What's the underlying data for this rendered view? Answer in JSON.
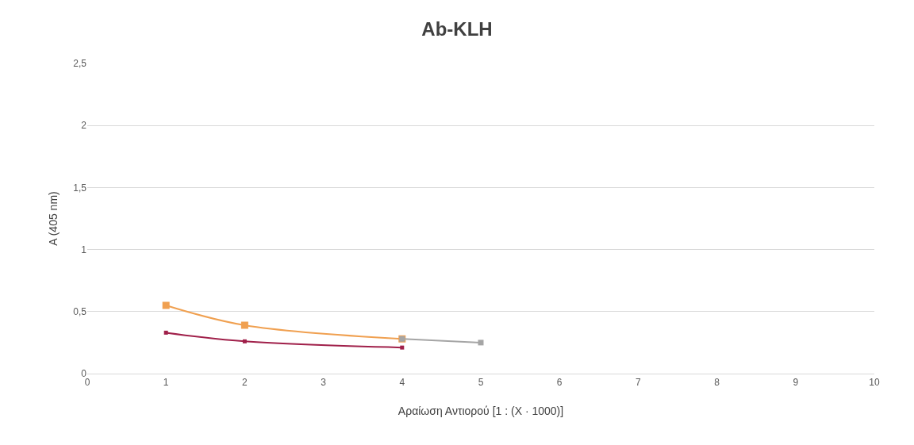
{
  "chart_data": {
    "type": "line",
    "title": "Ab-KLH",
    "xlabel": "Αραίωση Αντιορού [1 : (X · 1000)]",
    "ylabel": "A (405 nm)",
    "series": [
      {
        "color": "#f0a050",
        "x": [
          1,
          2,
          4
        ],
        "values": [
          0.55,
          0.39,
          0.28
        ]
      },
      {
        "color": "#a5a5a5",
        "x": [
          4,
          5
        ],
        "values": [
          0.28,
          0.25
        ]
      },
      {
        "color": "#a0204a",
        "x": [
          1,
          2,
          4
        ],
        "values": [
          0.33,
          0.26,
          0.21
        ]
      }
    ],
    "xlim": [
      0,
      10
    ],
    "xticks": [
      0,
      1,
      2,
      3,
      4,
      5,
      6,
      7,
      8,
      9,
      10
    ],
    "ylim": [
      0,
      2.5
    ],
    "yticks": [
      0,
      {
        "value": 0.5,
        "label": "0,5"
      },
      1,
      {
        "value": 1.5,
        "label": "1,5"
      },
      2,
      {
        "value": 2.5,
        "label": "2,5"
      }
    ],
    "grid": "y",
    "marker": "square",
    "line_style": "solid"
  }
}
